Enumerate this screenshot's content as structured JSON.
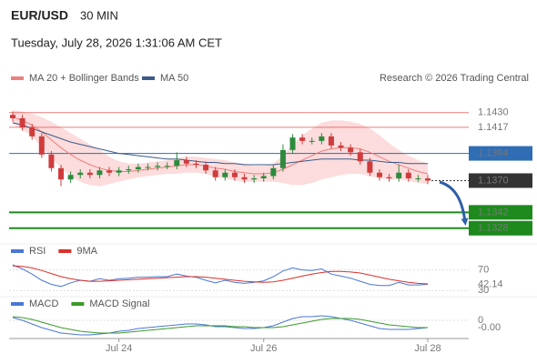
{
  "header": {
    "symbol": "EUR/USD",
    "interval": "30 MIN",
    "timestamp": "Tuesday, July 28, 2026 1:31:06 AM CET",
    "source": "Research © 2026 Trading Central"
  },
  "chart_data": [
    {
      "type": "candlestick",
      "categories": [
        null,
        null,
        null,
        null,
        null,
        null,
        null,
        null,
        null,
        null,
        null,
        "Jul 24",
        null,
        null,
        null,
        null,
        null,
        null,
        null,
        null,
        null,
        null,
        null,
        null,
        null,
        null,
        "Jul 26",
        null,
        null,
        null,
        null,
        null,
        null,
        null,
        null,
        null,
        null,
        null,
        null,
        null,
        null,
        null,
        null,
        "Jul 28"
      ],
      "open": [
        1.1428,
        1.1425,
        1.1417,
        1.1409,
        1.1393,
        1.1381,
        1.1371,
        1.1375,
        1.1377,
        1.1375,
        1.1379,
        1.1377,
        1.1379,
        1.138,
        1.1382,
        1.1382,
        1.1383,
        1.1383,
        1.1388,
        1.1385,
        1.1384,
        1.1379,
        1.1373,
        1.1377,
        1.1373,
        1.1371,
        1.1372,
        1.1374,
        1.1381,
        1.1397,
        1.1408,
        1.1405,
        1.1405,
        1.1409,
        1.1401,
        1.1399,
        1.1395,
        1.1387,
        1.1377,
        1.1373,
        1.1372,
        1.1377,
        1.1372,
        1.1372
      ],
      "high": [
        1.1431,
        1.1428,
        1.142,
        1.1412,
        1.1396,
        1.1384,
        1.1378,
        1.138,
        1.138,
        1.1382,
        1.1382,
        1.1382,
        1.1383,
        1.1385,
        1.1385,
        1.1386,
        1.1386,
        1.1395,
        1.1391,
        1.1388,
        1.1387,
        1.1382,
        1.138,
        1.138,
        1.1376,
        1.1375,
        1.1377,
        1.1384,
        1.1402,
        1.1411,
        1.1411,
        1.1408,
        1.1412,
        1.1412,
        1.1404,
        1.1402,
        1.1398,
        1.139,
        1.138,
        1.1376,
        1.1384,
        1.138,
        1.1375,
        1.1375
      ],
      "low": [
        1.1422,
        1.1414,
        1.1406,
        1.139,
        1.1378,
        1.1365,
        1.1368,
        1.1372,
        1.1372,
        1.1372,
        1.1374,
        1.1374,
        1.1376,
        1.1377,
        1.1379,
        1.1379,
        1.138,
        1.138,
        1.1382,
        1.1381,
        1.1376,
        1.137,
        1.137,
        1.137,
        1.1368,
        1.1368,
        1.1369,
        1.1371,
        1.1378,
        1.1394,
        1.1402,
        1.1402,
        1.1402,
        1.1398,
        1.1396,
        1.1392,
        1.1384,
        1.1374,
        1.137,
        1.1369,
        1.1369,
        1.1369,
        1.1369,
        1.1367
      ],
      "close": [
        1.1425,
        1.1417,
        1.1409,
        1.1393,
        1.1381,
        1.1371,
        1.1375,
        1.1377,
        1.1375,
        1.1379,
        1.1377,
        1.1379,
        1.138,
        1.1382,
        1.1382,
        1.1383,
        1.1383,
        1.1388,
        1.1385,
        1.1384,
        1.1379,
        1.1373,
        1.1377,
        1.1373,
        1.1371,
        1.1372,
        1.1374,
        1.1381,
        1.1397,
        1.1408,
        1.1405,
        1.1405,
        1.1409,
        1.1401,
        1.1399,
        1.1395,
        1.1387,
        1.1377,
        1.1373,
        1.1372,
        1.1377,
        1.1372,
        1.1372,
        1.137
      ],
      "up_color": "#2e8b3e",
      "down_color": "#d03c3c",
      "series": [
        {
          "name": "MA 20 + Bollinger Bands",
          "color": "#ee7f7f",
          "band_color": "#fcd6d6",
          "values": [
            1.1426,
            1.1423,
            1.1419,
            1.1413,
            1.1406,
            1.1399,
            1.1393,
            1.1388,
            1.1384,
            1.1381,
            1.1379,
            1.1378,
            1.1378,
            1.1379,
            1.138,
            1.1381,
            1.1382,
            1.1383,
            1.1384,
            1.1384,
            1.1383,
            1.1381,
            1.138,
            1.1378,
            1.1377,
            1.1376,
            1.1376,
            1.1377,
            1.138,
            1.1384,
            1.1388,
            1.1392,
            1.1396,
            1.1398,
            1.1399,
            1.1399,
            1.1398,
            1.1395,
            1.1391,
            1.1387,
            1.1384,
            1.1381,
            1.1378,
            1.1376
          ],
          "upper": [
            1.1432,
            1.1431,
            1.1429,
            1.1426,
            1.1422,
            1.1417,
            1.1412,
            1.1407,
            1.1402,
            1.1397,
            1.1391,
            1.1387,
            1.1385,
            1.1385,
            1.1386,
            1.1387,
            1.1388,
            1.139,
            1.1391,
            1.1391,
            1.139,
            1.1389,
            1.1388,
            1.1386,
            1.1385,
            1.1383,
            1.1383,
            1.1385,
            1.1392,
            1.1402,
            1.141,
            1.1416,
            1.1421,
            1.1423,
            1.1423,
            1.1422,
            1.142,
            1.1416,
            1.141,
            1.1403,
            1.1397,
            1.1392,
            1.1388,
            1.1385
          ],
          "lower": [
            1.142,
            1.1415,
            1.1409,
            1.14,
            1.139,
            1.1381,
            1.1374,
            1.1369,
            1.1366,
            1.1365,
            1.1367,
            1.1369,
            1.1371,
            1.1373,
            1.1374,
            1.1375,
            1.1376,
            1.1376,
            1.1377,
            1.1377,
            1.1376,
            1.1373,
            1.1372,
            1.137,
            1.1369,
            1.1369,
            1.1369,
            1.1369,
            1.1368,
            1.1366,
            1.1366,
            1.1368,
            1.1371,
            1.1373,
            1.1375,
            1.1376,
            1.1376,
            1.1374,
            1.1372,
            1.1371,
            1.1371,
            1.137,
            1.1368,
            1.1367
          ]
        },
        {
          "name": "MA 50",
          "color": "#3b5b8a",
          "values": [
            1.1421,
            1.1419,
            1.1416,
            1.1413,
            1.141,
            1.1407,
            1.1404,
            1.1402,
            1.14,
            1.1398,
            1.1396,
            1.1394,
            1.1393,
            1.1392,
            1.1391,
            1.139,
            1.1389,
            1.1389,
            1.1388,
            1.1387,
            1.1386,
            1.1386,
            1.1385,
            1.1385,
            1.1384,
            1.1384,
            1.1384,
            1.1384,
            1.1385,
            1.1386,
            1.1387,
            1.1388,
            1.1389,
            1.1389,
            1.1389,
            1.1389,
            1.1388,
            1.1388,
            1.1387,
            1.1386,
            1.1386,
            1.1385,
            1.1385,
            1.1385
          ]
        }
      ],
      "ylim": [
        1.1319,
        1.1437
      ],
      "levels": [
        {
          "value": 1.143,
          "label": "1.1430",
          "color": "#e04848",
          "kind": "line"
        },
        {
          "value": 1.1417,
          "label": "1.1417",
          "color": "#e04848",
          "kind": "line"
        },
        {
          "value": 1.1394,
          "label": "1.1394",
          "color": "#2f6db5",
          "kind": "box"
        },
        {
          "value": 1.137,
          "label": "1.1370",
          "color": "#333333",
          "kind": "last"
        },
        {
          "value": 1.1342,
          "label": "1.1342",
          "color": "#1e8a1e",
          "kind": "support"
        },
        {
          "value": 1.1328,
          "label": "1.1328",
          "color": "#1e8a1e",
          "kind": "support"
        }
      ]
    },
    {
      "type": "line",
      "series": [
        {
          "name": "RSI",
          "color": "#4a77d4",
          "values": [
            80,
            72,
            62,
            50,
            42,
            38,
            45,
            50,
            48,
            53,
            50,
            53,
            54,
            56,
            56,
            57,
            57,
            62,
            58,
            56,
            50,
            45,
            50,
            46,
            44,
            46,
            49,
            57,
            68,
            74,
            70,
            69,
            72,
            62,
            58,
            54,
            48,
            42,
            40,
            40,
            46,
            41,
            41,
            42.14
          ]
        },
        {
          "name": "9MA",
          "color": "#d9302a",
          "values": [
            78,
            77,
            74,
            69,
            63,
            57,
            53,
            50,
            48,
            48,
            49,
            50,
            51,
            52,
            53,
            54,
            55,
            56,
            57,
            57,
            56,
            54,
            52,
            50,
            48,
            47,
            46,
            47,
            50,
            54,
            58,
            62,
            65,
            67,
            67,
            66,
            64,
            60,
            56,
            52,
            49,
            46,
            44,
            43
          ]
        }
      ],
      "ylim": [
        20,
        87
      ],
      "yticks": [
        30,
        70
      ],
      "last_value": 42.14
    },
    {
      "type": "line",
      "series": [
        {
          "name": "MACD",
          "color": "#4a77d4",
          "values": [
            0.0003,
            0,
            -0.0004,
            -0.0008,
            -0.0011,
            -0.0014,
            -0.0015,
            -0.0016,
            -0.0016,
            -0.0015,
            -0.0014,
            -0.0012,
            -0.0011,
            -0.0009,
            -0.0008,
            -0.0007,
            -0.0006,
            -0.0005,
            -0.0004,
            -0.0004,
            -0.0005,
            -0.0007,
            -0.0007,
            -0.0008,
            -0.0009,
            -0.0009,
            -0.0008,
            -0.0006,
            -0.0002,
            0.0002,
            0.0004,
            0.0004,
            0.0005,
            0.0004,
            0.0002,
            0,
            -0.0003,
            -0.0006,
            -0.0009,
            -0.001,
            -0.001,
            -0.001,
            -0.0009,
            -0.0008
          ]
        },
        {
          "name": "MACD Signal",
          "color": "#3a9a2a",
          "values": [
            0.0004,
            0.0003,
            0.0001,
            -0.0002,
            -0.0005,
            -0.0008,
            -0.001,
            -0.0012,
            -0.0013,
            -0.0014,
            -0.0014,
            -0.0014,
            -0.0013,
            -0.0012,
            -0.0011,
            -0.001,
            -0.0009,
            -0.0008,
            -0.0007,
            -0.0006,
            -0.0006,
            -0.0006,
            -0.0006,
            -0.0007,
            -0.0007,
            -0.0008,
            -0.0008,
            -0.0008,
            -0.0007,
            -0.0005,
            -0.0003,
            -0.0001,
            0.0001,
            0.0002,
            0.0002,
            0.0002,
            0.0001,
            -0.0001,
            -0.0003,
            -0.0005,
            -0.0006,
            -0.0007,
            -0.0008,
            -0.0008
          ]
        }
      ],
      "ylim": [
        -0.0023,
        0.0012
      ],
      "yticks": [
        0
      ],
      "last_value": {
        "value": -0.0008,
        "label": "-0.00"
      }
    }
  ]
}
